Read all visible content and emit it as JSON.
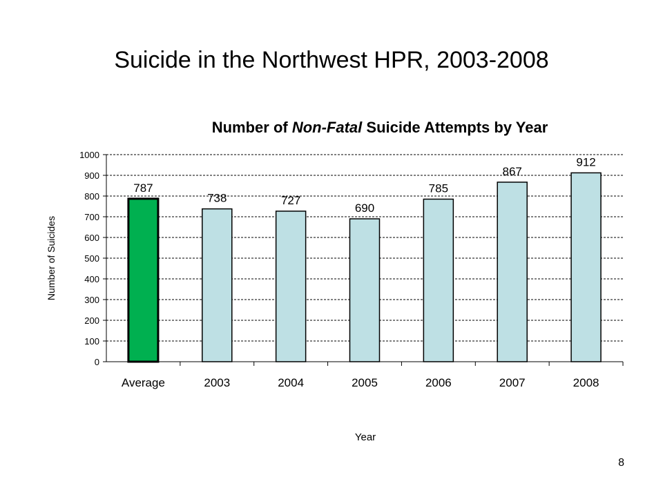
{
  "slide": {
    "title": "Suicide in the Northwest HPR, 2003-2008",
    "page_number": "8"
  },
  "chart_data": {
    "type": "bar",
    "title_parts": [
      "Number of ",
      "Non-Fatal",
      " Suicide Attempts by Year"
    ],
    "xlabel": "Year",
    "ylabel": "Number of Suicides",
    "categories": [
      "Average",
      "2003",
      "2004",
      "2005",
      "2006",
      "2007",
      "2008"
    ],
    "values": [
      787,
      738,
      727,
      690,
      785,
      867,
      912
    ],
    "data_labels": [
      "787",
      "738",
      "727",
      "690",
      "785",
      "867",
      "912"
    ],
    "ylim": [
      0,
      1000
    ],
    "yticks": [
      0,
      100,
      200,
      300,
      400,
      500,
      600,
      700,
      800,
      900,
      1000
    ],
    "gridlines": "dashed",
    "colors": {
      "average": "#00B050",
      "bars": "#BEE0E4",
      "outline": "#000000"
    }
  }
}
